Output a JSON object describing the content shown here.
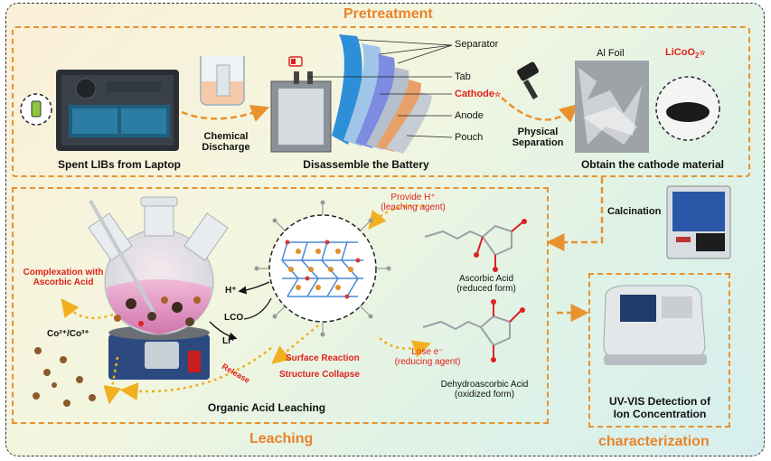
{
  "sections": {
    "pretreatment": "Pretreatment",
    "leaching": "Leaching",
    "characterization": "characterization"
  },
  "pretreatment": {
    "spent_libs": "Spent LIBs from Laptop",
    "chemical_discharge_1": "Chemical",
    "chemical_discharge_2": "Discharge",
    "disassemble": "Disassemble the Battery",
    "separator": "Separator",
    "tab": "Tab",
    "cathode": "Cathode",
    "anode": "Anode",
    "pouch": "Pouch",
    "physical_1": "Physical",
    "physical_2": "Separation",
    "al_foil": "Al Foil",
    "licoo2": "LiCoO",
    "licoo2_sub": "2",
    "obtain": "Obtain the cathode material"
  },
  "calcination": "Calcination",
  "leaching": {
    "complexation_1": "Complexation with",
    "complexation_2": "Ascorbic Acid",
    "co_ion": "Co²⁺/Co³⁺",
    "h_ion": "H⁺",
    "lco": "LCO",
    "li_ion": "Li⁺",
    "surface_reaction": "Surface Reaction",
    "structure_collapse": "Structure Collapse",
    "release": "Release",
    "organic_acid": "Organic Acid Leaching",
    "provide_h_1": "Provide H⁺",
    "provide_h_2": "(leaching agent)",
    "lose_e_1": "Lose e⁻",
    "lose_e_2": "(reducing agent)",
    "ascorbic_1": "Ascorbic Acid",
    "ascorbic_2": "(reduced form)",
    "dehydro_1": "Dehydroascorbic Acid",
    "dehydro_2": "(oxidized form)"
  },
  "characterization": {
    "uv_1": "UV-VIS Detection of",
    "uv_2": "Ion Concentration"
  },
  "colors": {
    "accent_orange": "#e8922d",
    "red_text": "#e0201b",
    "title_orange": "#e8842a"
  }
}
